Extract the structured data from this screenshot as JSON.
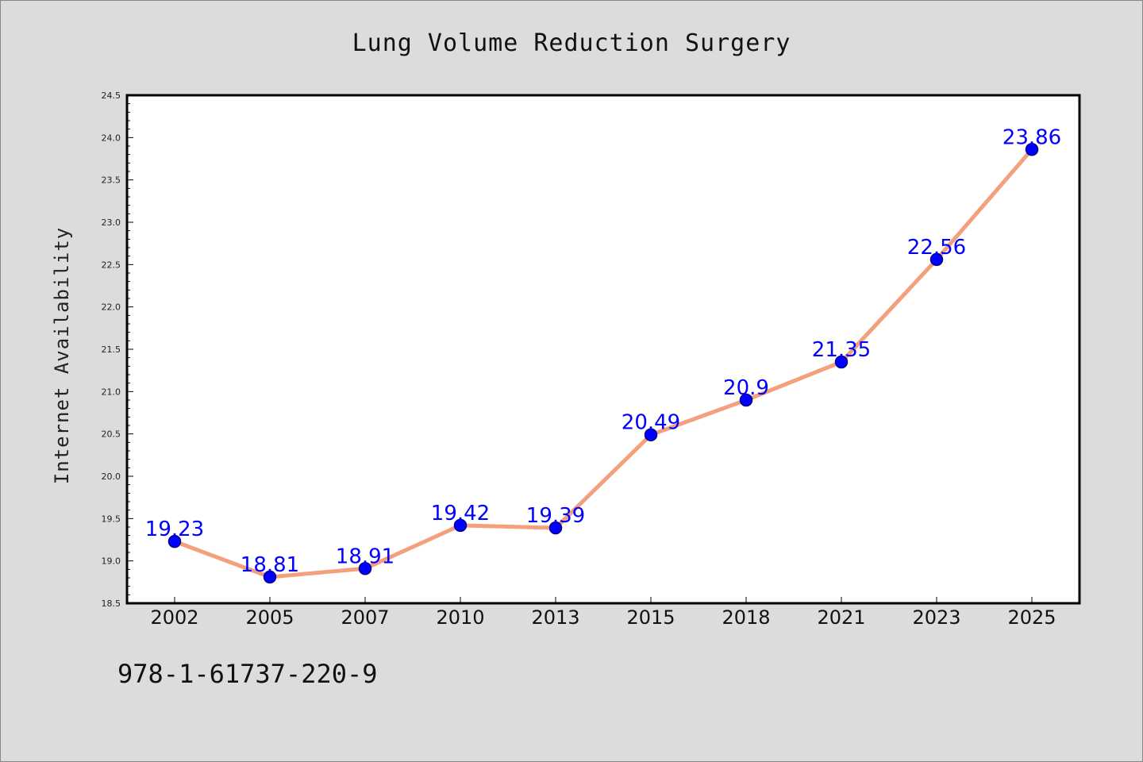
{
  "chart_data": {
    "type": "line",
    "title": "Lung Volume Reduction Surgery",
    "xlabel": "",
    "ylabel": "Internet Availability",
    "categories": [
      "2002",
      "2005",
      "2007",
      "2010",
      "2013",
      "2015",
      "2018",
      "2021",
      "2023",
      "2025"
    ],
    "series": [
      {
        "values": [
          19.23,
          18.81,
          18.91,
          19.42,
          19.39,
          20.49,
          20.9,
          21.35,
          22.56,
          23.86
        ],
        "data_labels": [
          "19.23",
          "18.81",
          "18.91",
          "19.42",
          "19.39",
          "20.49",
          "20.9",
          "21.35",
          "22.56",
          "23.86"
        ]
      }
    ],
    "ylim": [
      18.5,
      24.5
    ],
    "yticks": [
      "18.5",
      "19.0",
      "19.5",
      "20.0",
      "20.5",
      "21.0",
      "21.5",
      "22.0",
      "22.5",
      "23.0",
      "23.5",
      "24.0",
      "24.5"
    ],
    "grid": false,
    "colors": {
      "line": "#f4a07c",
      "marker": "#0000ff",
      "marker_edge": "#00008b",
      "data_label": "#0000ff",
      "plot_background": "#ffffff",
      "figure_background": "#dcdcdc"
    }
  },
  "footer": {
    "code": "978-1-61737-220-9"
  }
}
